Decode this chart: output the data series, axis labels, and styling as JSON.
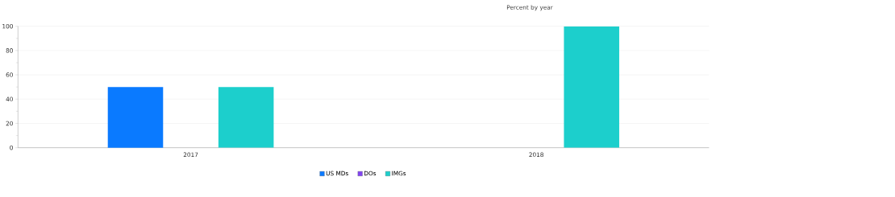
{
  "chart_data": {
    "type": "bar",
    "title": "Percent by year",
    "categories": [
      "2017",
      "2018"
    ],
    "series": [
      {
        "name": "US MDs",
        "color": "#0a7aff",
        "values": [
          50,
          0
        ]
      },
      {
        "name": "DOs",
        "color": "#8044f0",
        "values": [
          0,
          0
        ]
      },
      {
        "name": "IMGs",
        "color": "#1ccfcc",
        "values": [
          50,
          100
        ]
      }
    ],
    "ylim": [
      0,
      100
    ],
    "yticks": [
      0,
      {
        "value": 10,
        "label": null
      },
      20,
      {
        "value": 30,
        "label": null
      },
      40,
      {
        "value": 50,
        "label": null
      },
      60,
      {
        "value": 70,
        "label": null
      },
      80,
      {
        "value": 90,
        "label": null
      },
      100
    ],
    "grid": "y",
    "legend": "bottom"
  }
}
